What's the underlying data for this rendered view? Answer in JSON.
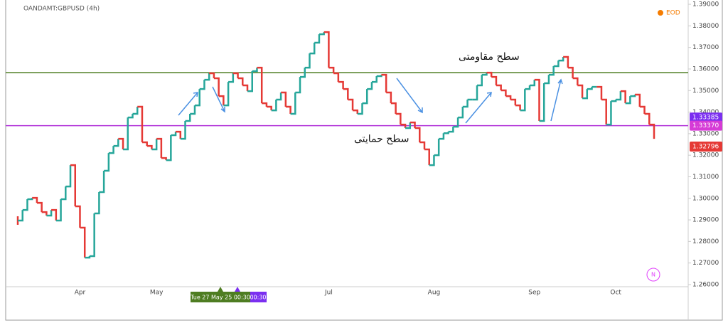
{
  "chart_data": {
    "type": "step",
    "title": "OANDAMT:GBPUSD (4h)",
    "source_label": "EOD",
    "badge": "N",
    "up_color": "#26a69a",
    "down_color": "#e53935",
    "values": [
      1.2897,
      1.2946,
      1.2996,
      1.3002,
      1.2979,
      1.2936,
      1.292,
      1.2946,
      1.2897,
      1.2996,
      1.3055,
      1.3154,
      1.2963,
      1.2864,
      1.2725,
      1.2732,
      1.293,
      1.3029,
      1.3128,
      1.321,
      1.3243,
      1.3276,
      1.3227,
      1.3375,
      1.3392,
      1.3425,
      1.326,
      1.3243,
      1.3227,
      1.3276,
      1.3187,
      1.3177,
      1.3293,
      1.3309,
      1.3276,
      1.3359,
      1.3392,
      1.3431,
      1.3507,
      1.355,
      1.358,
      1.3557,
      1.3474,
      1.3431,
      1.354,
      1.358,
      1.3557,
      1.3524,
      1.3497,
      1.359,
      1.3606,
      1.3441,
      1.3425,
      1.3408,
      1.3458,
      1.3491,
      1.3425,
      1.3392,
      1.3491,
      1.3563,
      1.3606,
      1.3672,
      1.3722,
      1.3761,
      1.3771,
      1.3606,
      1.358,
      1.354,
      1.3507,
      1.3458,
      1.3408,
      1.3392,
      1.3441,
      1.3507,
      1.354,
      1.3567,
      1.3573,
      1.3491,
      1.3441,
      1.3392,
      1.3342,
      1.3326,
      1.3352,
      1.3326,
      1.326,
      1.3227,
      1.3154,
      1.32,
      1.3276,
      1.3302,
      1.3309,
      1.3332,
      1.3375,
      1.3425,
      1.3458,
      1.3458,
      1.3524,
      1.3573,
      1.3583,
      1.3563,
      1.3524,
      1.3501,
      1.3474,
      1.3458,
      1.3431,
      1.3408,
      1.3507,
      1.3524,
      1.355,
      1.3359,
      1.3534,
      1.3573,
      1.3613,
      1.3639,
      1.3656,
      1.3606,
      1.3557,
      1.3524,
      1.3464,
      1.3507,
      1.3517,
      1.3517,
      1.3458,
      1.3342,
      1.3451,
      1.3458,
      1.3497,
      1.3441,
      1.3474,
      1.3481,
      1.3425,
      1.3392,
      1.3342,
      1.3276
    ],
    "categories": [
      null,
      null,
      null,
      null,
      null,
      null,
      null,
      null,
      null,
      null,
      null,
      null,
      null,
      "Apr",
      null,
      null,
      null,
      null,
      null,
      null,
      null,
      null,
      null,
      null,
      null,
      null,
      null,
      null,
      null,
      "May",
      null,
      null,
      null,
      null,
      null,
      null,
      null,
      null,
      null,
      null,
      null,
      null,
      null,
      null,
      null,
      null,
      null,
      null,
      null,
      null,
      null,
      null,
      null,
      null,
      null,
      null,
      null,
      null,
      null,
      null,
      null,
      null,
      null,
      null,
      null,
      "Jul",
      null,
      null,
      null,
      null,
      null,
      null,
      null,
      null,
      null,
      null,
      null,
      null,
      null,
      null,
      null,
      null,
      null,
      null,
      null,
      null,
      null,
      "Aug",
      null,
      null,
      null,
      null,
      null,
      null,
      null,
      null,
      null,
      null,
      null,
      null,
      null,
      null,
      null,
      null,
      null,
      null,
      null,
      null,
      "Sep",
      null,
      null,
      null,
      null,
      null,
      null,
      null,
      null,
      null,
      null,
      null,
      null,
      null,
      null,
      null,
      null,
      "Oct",
      null,
      null,
      null,
      null,
      null,
      null,
      null,
      null
    ],
    "ylim": [
      1.259,
      1.392
    ],
    "yticks": [
      {
        "value": 1.26,
        "label": "1.26000"
      },
      {
        "value": 1.27,
        "label": "1.27000"
      },
      {
        "value": 1.28,
        "label": "1.28000"
      },
      {
        "value": 1.29,
        "label": "1.29000"
      },
      {
        "value": 1.3,
        "label": "1.30000"
      },
      {
        "value": 1.31,
        "label": "1.31000"
      },
      {
        "value": 1.32,
        "label": "1.32000"
      },
      {
        "value": 1.33,
        "label": "1.33000"
      },
      {
        "value": 1.34,
        "label": "1.34000"
      },
      {
        "value": 1.35,
        "label": "1.35000"
      },
      {
        "value": 1.36,
        "label": "1.36000"
      },
      {
        "value": 1.37,
        "label": "1.37000"
      },
      {
        "value": 1.38,
        "label": "1.38000"
      },
      {
        "value": 1.39,
        "label": "1.39000"
      }
    ],
    "levels": [
      {
        "value": 1.3583,
        "color": "#4e7d22",
        "label": "سطح مقاومتی"
      },
      {
        "value": 1.3337,
        "color": "#b030d8",
        "label": "سطح حمایتی"
      }
    ],
    "price_labels": [
      {
        "value": 1.33385,
        "label": "1.33385",
        "color": "#7b2ff0"
      },
      {
        "value": 1.3337,
        "label": "1.33370",
        "color": "#d63bd6"
      },
      {
        "value": 1.32796,
        "label": "1.32796",
        "color": "#e53935"
      }
    ],
    "crosshair_labels": [
      "Tue 27 May 25 00:30",
      "00:30"
    ]
  }
}
